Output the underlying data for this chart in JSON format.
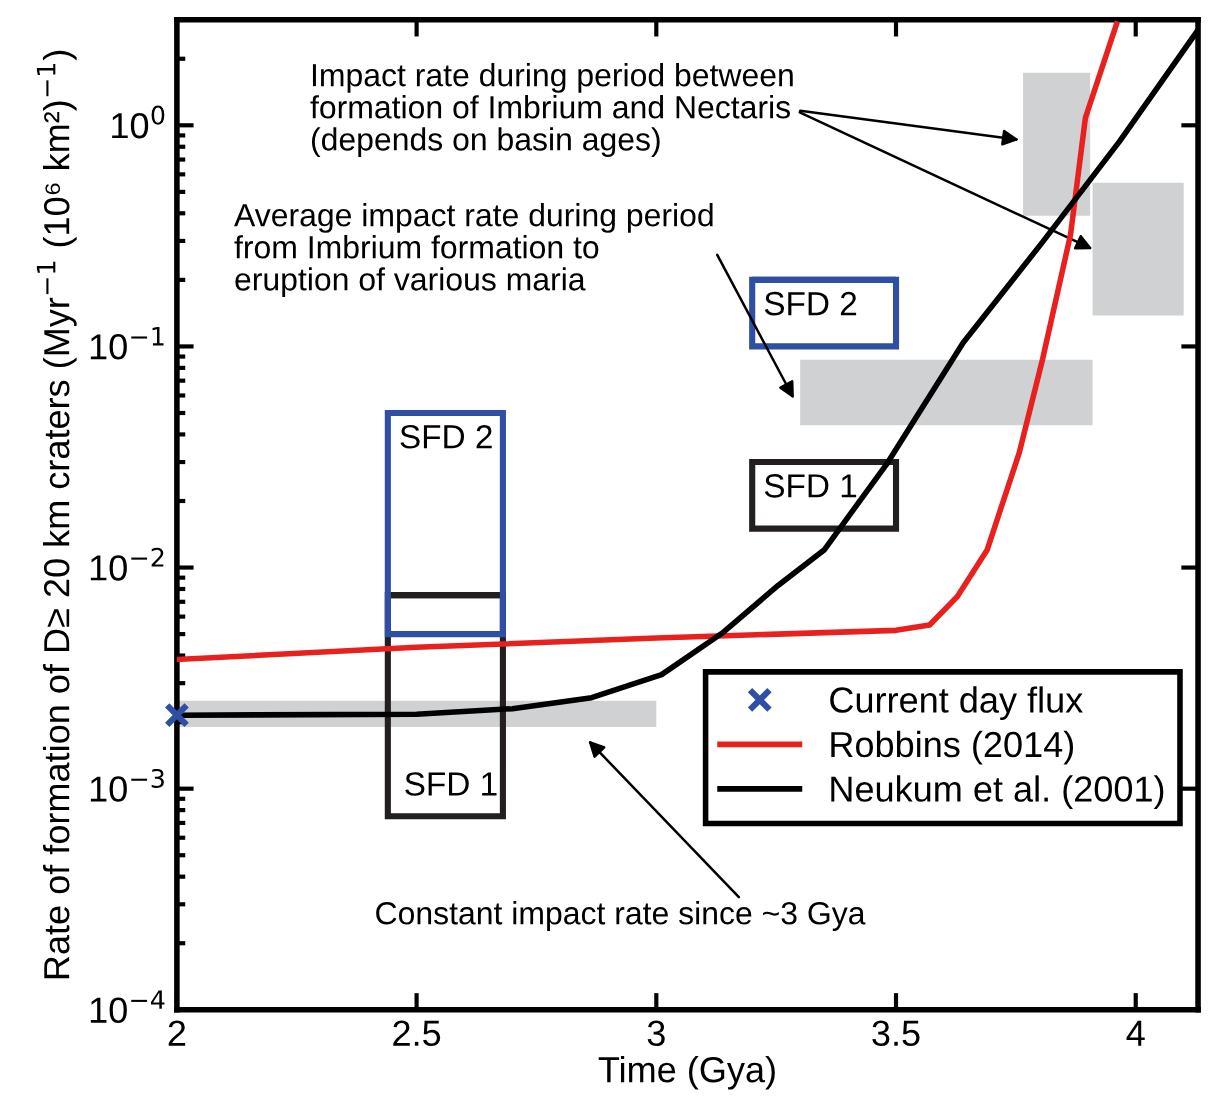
{
  "chart_data": {
    "type": "line",
    "xlabel": "Time (Gya)",
    "ylabel": "Rate of formation of D≥ 20 km craters (Myr$^{−1}$ (10⁶ km²)$^{−1}$)",
    "xlim": [
      2,
      4.13
    ],
    "ylim": [
      0.0001,
      3
    ],
    "xticks": [
      2,
      2.5,
      3,
      3.5,
      4
    ],
    "yticks": [
      {
        "value": 0.0001,
        "label": "10$^{−4}$"
      },
      {
        "value": 0.001,
        "label": "10$^{−3}$"
      },
      {
        "value": 0.01,
        "label": "10$^{−2}$"
      },
      {
        "value": 0.1,
        "label": "10$^{−1}$"
      },
      {
        "value": 1,
        "label": "10$^{0}$"
      }
    ],
    "log": "y",
    "grid": false,
    "legend": "lower right",
    "series": [
      {
        "type": "area",
        "color": "#d0d1d3",
        "x": [
          2,
          3,
          3,
          2
        ],
        "values": [
          0.0019,
          0.0019,
          0.0025,
          0.0025
        ]
      },
      {
        "type": "area",
        "color": "#d0d1d3",
        "x": [
          3.3,
          3.91,
          3.91,
          3.3
        ],
        "values": [
          0.044,
          0.044,
          0.087,
          0.087
        ]
      },
      {
        "type": "area",
        "color": "#d0d1d3",
        "x": [
          3.765,
          3.905,
          3.905,
          3.765
        ],
        "values": [
          0.39,
          0.39,
          1.73,
          1.73
        ]
      },
      {
        "type": "area",
        "color": "#d0d1d3",
        "x": [
          3.91,
          4.1,
          4.1,
          3.91
        ],
        "values": [
          0.138,
          0.138,
          0.55,
          0.55
        ]
      },
      {
        "type": "bar",
        "color": "#231f20",
        "x": [
          2.56
        ],
        "xerrors": [
          [
            2.44,
            2.68
          ]
        ],
        "base": [
          0.00075
        ],
        "values": [
          0.00675
        ]
      },
      {
        "type": "bar",
        "color": "#2e4fa3",
        "x": [
          2.56
        ],
        "xerrors": [
          [
            2.44,
            2.68
          ]
        ],
        "base": [
          0.005
        ],
        "values": [
          0.045
        ]
      },
      {
        "type": "bar",
        "color": "#231f20",
        "x": [
          3.35
        ],
        "xerrors": [
          [
            3.2,
            3.5
          ]
        ],
        "base": [
          0.015
        ],
        "values": [
          0.015
        ]
      },
      {
        "type": "bar",
        "color": "#2e4fa3",
        "x": [
          3.35
        ],
        "xerrors": [
          [
            3.2,
            3.5
          ]
        ],
        "base": [
          0.1
        ],
        "values": [
          0.1
        ]
      },
      {
        "name": "Robbins (2014)",
        "color": "#e8211f",
        "x": [
          2,
          2.5,
          3.0,
          3.5,
          3.57,
          3.628,
          3.69,
          3.757,
          3.806,
          3.864,
          3.895,
          3.96
        ],
        "values": [
          0.00384,
          0.00436,
          0.0048,
          0.0052,
          0.0055,
          0.0074,
          0.012,
          0.033,
          0.088,
          0.32,
          1.08,
          2.87
        ]
      },
      {
        "name": "Neukum et al. (2001)",
        "color": "#000000",
        "x": [
          2,
          2.5,
          2.7,
          2.865,
          3.011,
          3.14,
          3.254,
          3.35,
          3.482,
          3.64,
          3.806,
          3.967,
          4.13
        ],
        "values": [
          0.00215,
          0.00217,
          0.0023,
          0.00258,
          0.00328,
          0.0051,
          0.0083,
          0.012,
          0.0297,
          0.104,
          0.297,
          0.85,
          2.7
        ]
      },
      {
        "type": "scatter",
        "name": "Current day flux",
        "color": "#2e4fa3",
        "marker": "cross",
        "x": [
          2
        ],
        "values": [
          0.00215
        ]
      }
    ],
    "annotations": [
      {
        "text": "Impact rate during period between\nformation of Imbrium and Nectaris\n(depends on basin ages)",
        "x": 3.757,
        "y": 0.86
      },
      {
        "text": "Average impact rate during period\nfrom Imbrium formation to\neruption of various maria",
        "x": 3.287,
        "y": 0.058
      },
      "Constant impact rate since ~3 Gya",
      "SFD 2",
      "SFD 1",
      "SFD 2",
      "SFD 1"
    ]
  }
}
